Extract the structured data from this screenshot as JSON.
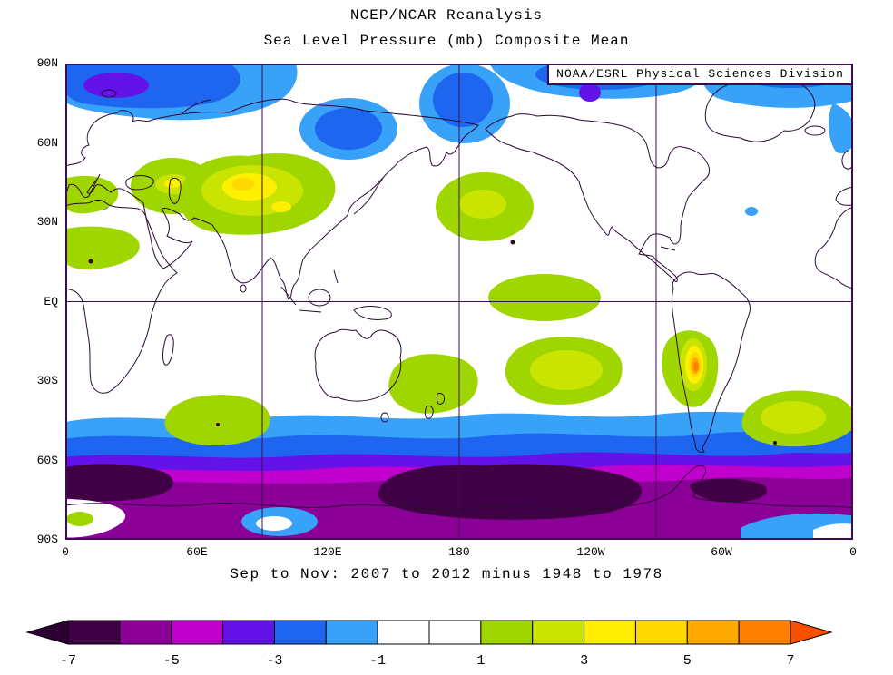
{
  "title": {
    "line1": "NCEP/NCAR Reanalysis",
    "line2": "Sea Level Pressure (mb) Composite Mean"
  },
  "credit": "NOAA/ESRL Physical Sciences Division",
  "caption": "Sep to Nov: 2007 to 2012 minus 1948 to 1978",
  "axes": {
    "lat_ticks": [
      "90N",
      "60N",
      "30N",
      "EQ",
      "30S",
      "60S",
      "90S"
    ],
    "lon_ticks": [
      "0",
      "60E",
      "120E",
      "180",
      "120W",
      "60W",
      "0"
    ]
  },
  "colorbar": {
    "labels": [
      "-7",
      "-5",
      "-3",
      "-1",
      "1",
      "3",
      "5",
      "7"
    ],
    "segment_colors": [
      "#3f0045",
      "#8b0096",
      "#c000cc",
      "#6312e8",
      "#1e66f0",
      "#38a1f8",
      "#ffffff",
      "#ffffff",
      "#a0d600",
      "#c8e400",
      "#ffef00",
      "#ffd800",
      "#ffa800",
      "#ff7f00"
    ],
    "left_arrow_color": "#2d0033",
    "right_arrow_color": "#f85000",
    "outline_color": "#000000"
  },
  "colors": {
    "frame": "#3a0d52",
    "coastline": "#2b0a33",
    "background": "#ffffff"
  },
  "chart_data": {
    "type": "filled_contour_map",
    "title": "NCEP/NCAR Reanalysis - Sea Level Pressure (mb) Composite Mean",
    "variable": "Sea level pressure anomaly",
    "units": "mb",
    "season": "Sep to Nov",
    "composite": "2007 to 2012 minus 1948 to 1978",
    "projection": "cylindrical, latitude 90S-90N, longitude 0-360 (0 at both edges, 180 center)",
    "contour_interval_mb": 1,
    "colorbar_values": [
      -7,
      -5,
      -3,
      -1,
      1,
      3,
      5,
      7
    ],
    "value_range_mb": [
      -7,
      7
    ],
    "grid_lines": {
      "meridians": [
        "90E",
        "180",
        "90W"
      ],
      "parallels": [
        "EQ"
      ]
    },
    "features": [
      {
        "region": "Circumpolar Southern Ocean storm track (45S-75S, all longitudes)",
        "sign": "negative",
        "peak_mb": -7,
        "note": "banded rings -1 to below -7; darkest cores near 60S-70S in the Ross Sea / South Pacific sector and south Indian sector"
      },
      {
        "region": "Arctic Barents/Kara Seas (70N-88N, 0-80E)",
        "sign": "negative",
        "peak_mb": -4
      },
      {
        "region": "Northeast Siberia (50N-70N, 100-140E)",
        "sign": "negative",
        "peak_mb": -3
      },
      {
        "region": "Bering Strait / Chukchi Sea (55N-80N, near 180)",
        "sign": "negative",
        "peak_mb": -3
      },
      {
        "region": "Canadian Arctic / Baffin Bay (68N-88N, 230-300E)",
        "sign": "negative",
        "peak_mb": -3
      },
      {
        "region": "High-latitude North Atlantic (60N-85N, 300-360E)",
        "sign": "negative",
        "peak_mb": -2
      },
      {
        "region": "Europe (35N-55N, 0-35E)",
        "sign": "positive",
        "peak_mb": 3
      },
      {
        "region": "Central Asia (30N-55N, 45-115E)",
        "sign": "positive",
        "peak_mb": 4
      },
      {
        "region": "North Africa / Middle East (5N-35N, 0-35E)",
        "sign": "positive",
        "peak_mb": 2
      },
      {
        "region": "Subtropical North Pacific near Hawaii (15N-40N, 170-215E)",
        "sign": "positive",
        "peak_mb": 2
      },
      {
        "region": "Equatorial central Pacific (5N-15S, 195-245E)",
        "sign": "positive",
        "peak_mb": 2
      },
      {
        "region": "South Pacific subtropics (25S-45S, 200-255E)",
        "sign": "positive",
        "peak_mb": 3
      },
      {
        "region": "Australia / Tasman Sea / New Zealand (25S-48S, 145-185E)",
        "sign": "positive",
        "peak_mb": 2
      },
      {
        "region": "Southern South America / Andes (20S-45S, 285-300E)",
        "sign": "positive",
        "peak_mb": 7,
        "note": "small orange-red maximum near 30S"
      },
      {
        "region": "South Atlantic (30S-50S, 305-360E)",
        "sign": "positive",
        "peak_mb": 3
      },
      {
        "region": "South Indian Ocean (35S-50S, 45-95E)",
        "sign": "positive",
        "peak_mb": 2
      }
    ]
  }
}
